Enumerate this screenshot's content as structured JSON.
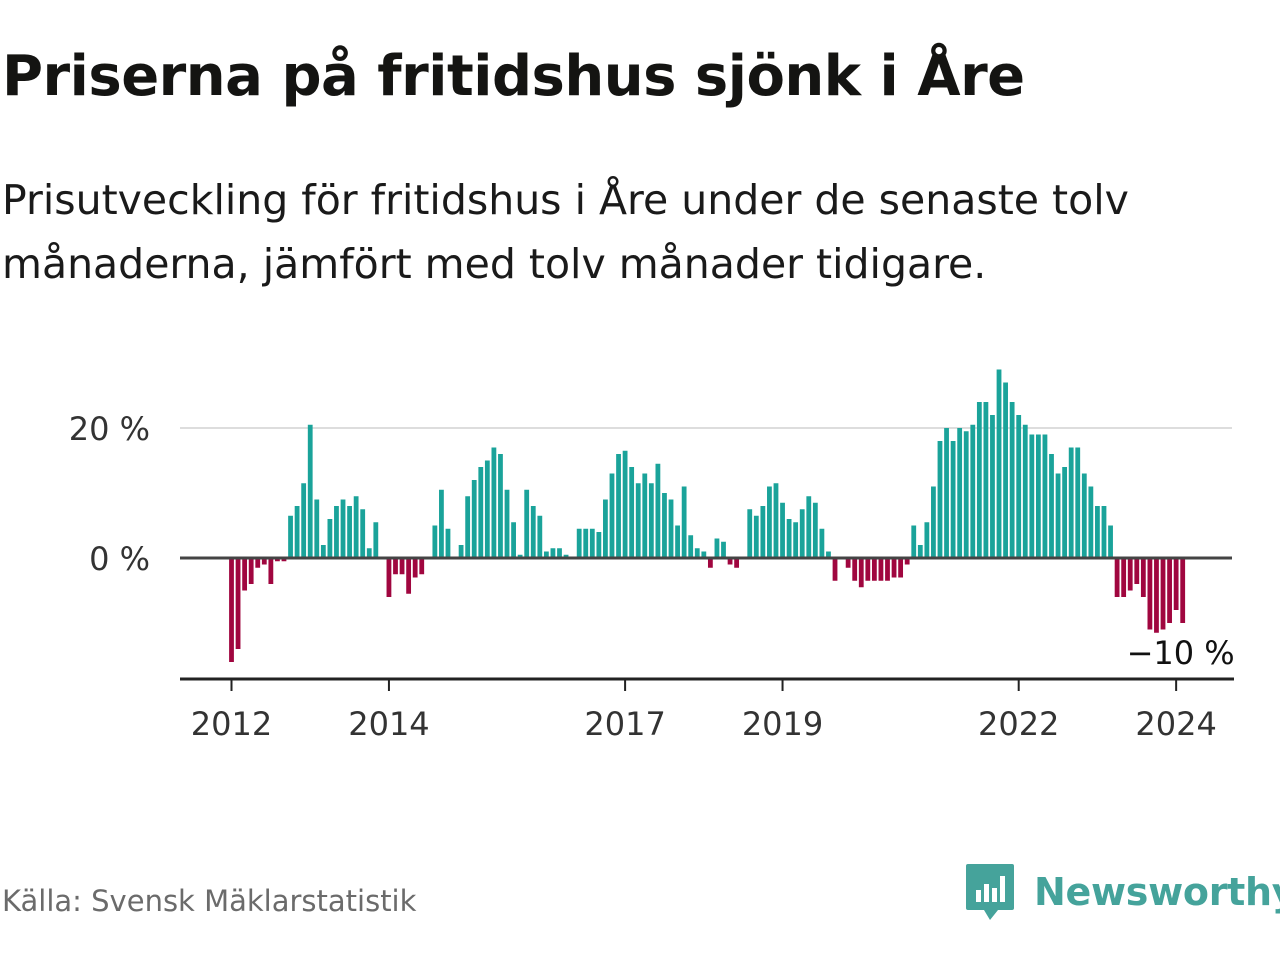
{
  "title": "Priserna på fritidshus sjönk i Åre",
  "subtitle": "Prisutveckling för fritidshus i Åre under de senaste tolv månaderna, jämfört med tolv månader tidigare.",
  "source": "Källa: Svensk Mäklarstatistik",
  "brand": {
    "name": "Newsworthy",
    "icon": "newsworthy-logo-icon",
    "color": "#45a39b"
  },
  "colors": {
    "positive": "#1aa39a",
    "negative": "#a0063f",
    "axis": "#444444",
    "grid": "#dddddd"
  },
  "chart_data": {
    "type": "bar",
    "title": "Priserna på fritidshus sjönk i Åre",
    "xlabel": "",
    "ylabel": "",
    "unit": "%",
    "ylim": [
      -18,
      32
    ],
    "y_ticks": [
      {
        "value": 0,
        "label": "0 %"
      },
      {
        "value": 20,
        "label": "20 %"
      }
    ],
    "x_ticks": [
      {
        "index": 0,
        "label": "2012"
      },
      {
        "index": 24,
        "label": "2014"
      },
      {
        "index": 60,
        "label": "2017"
      },
      {
        "index": 84,
        "label": "2019"
      },
      {
        "index": 120,
        "label": "2022"
      },
      {
        "index": 144,
        "label": "2024"
      }
    ],
    "start": "2012-01",
    "frequency": "monthly",
    "values": [
      -16,
      -14,
      -5,
      -4,
      -1.5,
      -1,
      -4,
      -0.5,
      -0.5,
      6.5,
      8,
      11.5,
      20.5,
      9,
      2,
      6,
      8,
      9,
      8,
      9.5,
      7.5,
      1.5,
      5.5,
      0,
      -6,
      -2.5,
      -2.5,
      -5.5,
      -3,
      -2.5,
      0,
      5,
      10.5,
      4.5,
      0,
      2,
      9.5,
      12,
      14,
      15,
      17,
      16,
      10.5,
      5.5,
      0.5,
      10.5,
      8,
      6.5,
      1,
      1.5,
      1.5,
      0.5,
      0,
      4.5,
      4.5,
      4.5,
      4,
      9,
      13,
      16,
      16.5,
      14,
      11.5,
      13,
      11.5,
      14.5,
      10,
      9,
      5,
      11,
      3.5,
      1.5,
      1,
      -1.5,
      3,
      2.5,
      -1,
      -1.5,
      0,
      7.5,
      6.5,
      8,
      11,
      11.5,
      8.5,
      6,
      5.5,
      7.5,
      9.5,
      8.5,
      4.5,
      1,
      -3.5,
      0,
      -1.5,
      -3.5,
      -4.5,
      -3.5,
      -3.5,
      -3.5,
      -3.5,
      -3,
      -3,
      -1,
      5,
      2,
      5.5,
      11,
      18,
      20,
      18,
      20,
      19.5,
      20.5,
      24,
      24,
      22,
      29,
      27,
      24,
      22,
      20.5,
      19,
      19,
      19,
      16,
      13,
      14,
      17,
      17,
      13,
      11,
      8,
      8,
      5,
      -6,
      -6,
      -5,
      -4,
      -6,
      -11,
      -11.5,
      -11,
      -10,
      -8,
      -10
    ],
    "last_label": "−10 %"
  }
}
